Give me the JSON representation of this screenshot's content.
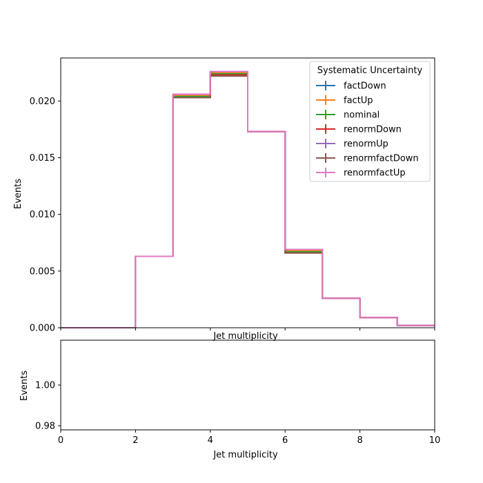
{
  "chart_data": [
    {
      "type": "line",
      "step": true,
      "xlabel": "Jet multiplicity",
      "ylabel": "Events",
      "xlim": [
        0,
        10
      ],
      "ylim": [
        0,
        0.0238
      ],
      "xticks": [
        0,
        2,
        4,
        6,
        8,
        10
      ],
      "yticks": [
        0.0,
        0.005,
        0.01,
        0.015,
        0.02
      ],
      "ytick_labels": [
        "0.000",
        "0.005",
        "0.010",
        "0.015",
        "0.020"
      ],
      "grid": false,
      "legend_title": "Systematic Uncertainty",
      "legend_placement": "top-right",
      "bin_edges": [
        0,
        1,
        2,
        3,
        4,
        5,
        6,
        7,
        8,
        9,
        10
      ],
      "series": [
        {
          "name": "factDown",
          "color": "#1f77b4",
          "values": [
            0,
            0,
            0.0063,
            0.0204,
            0.0224,
            0.0173,
            0.0067,
            0.0026,
            0.0009,
            0.0002
          ]
        },
        {
          "name": "factUp",
          "color": "#ff7f0e",
          "values": [
            0,
            0,
            0.0063,
            0.0205,
            0.0225,
            0.0173,
            0.0068,
            0.0026,
            0.0009,
            0.0002
          ]
        },
        {
          "name": "nominal",
          "color": "#2ca02c",
          "values": [
            0,
            0,
            0.0063,
            0.0204,
            0.0224,
            0.0173,
            0.0067,
            0.0026,
            0.0009,
            0.0002
          ]
        },
        {
          "name": "renormDown",
          "color": "#d62728",
          "values": [
            0,
            0,
            0.0063,
            0.0203,
            0.0223,
            0.0173,
            0.0066,
            0.0026,
            0.0009,
            0.0002
          ]
        },
        {
          "name": "renormUp",
          "color": "#9467bd",
          "values": [
            0,
            0,
            0.0063,
            0.0206,
            0.0226,
            0.0173,
            0.0069,
            0.0026,
            0.0009,
            0.0002
          ]
        },
        {
          "name": "renormfactDown",
          "color": "#8c564b",
          "values": [
            0,
            0,
            0.0063,
            0.0203,
            0.0222,
            0.0173,
            0.0066,
            0.0026,
            0.0009,
            0.0002
          ]
        },
        {
          "name": "renormfactUp",
          "color": "#e377c2",
          "values": [
            0,
            0,
            0.0063,
            0.0206,
            0.0226,
            0.0173,
            0.0069,
            0.0026,
            0.0009,
            0.0002
          ]
        }
      ]
    },
    {
      "type": "line",
      "xlabel": "Jet multiplicity",
      "ylabel": "Events",
      "xlim": [
        0,
        10
      ],
      "ylim": [
        0.978,
        1.022
      ],
      "xticks": [
        0,
        2,
        4,
        6,
        8,
        10
      ],
      "yticks": [
        0.98,
        1.0
      ],
      "ytick_labels": [
        "0.98",
        "1.00"
      ],
      "grid": false,
      "series": []
    }
  ]
}
